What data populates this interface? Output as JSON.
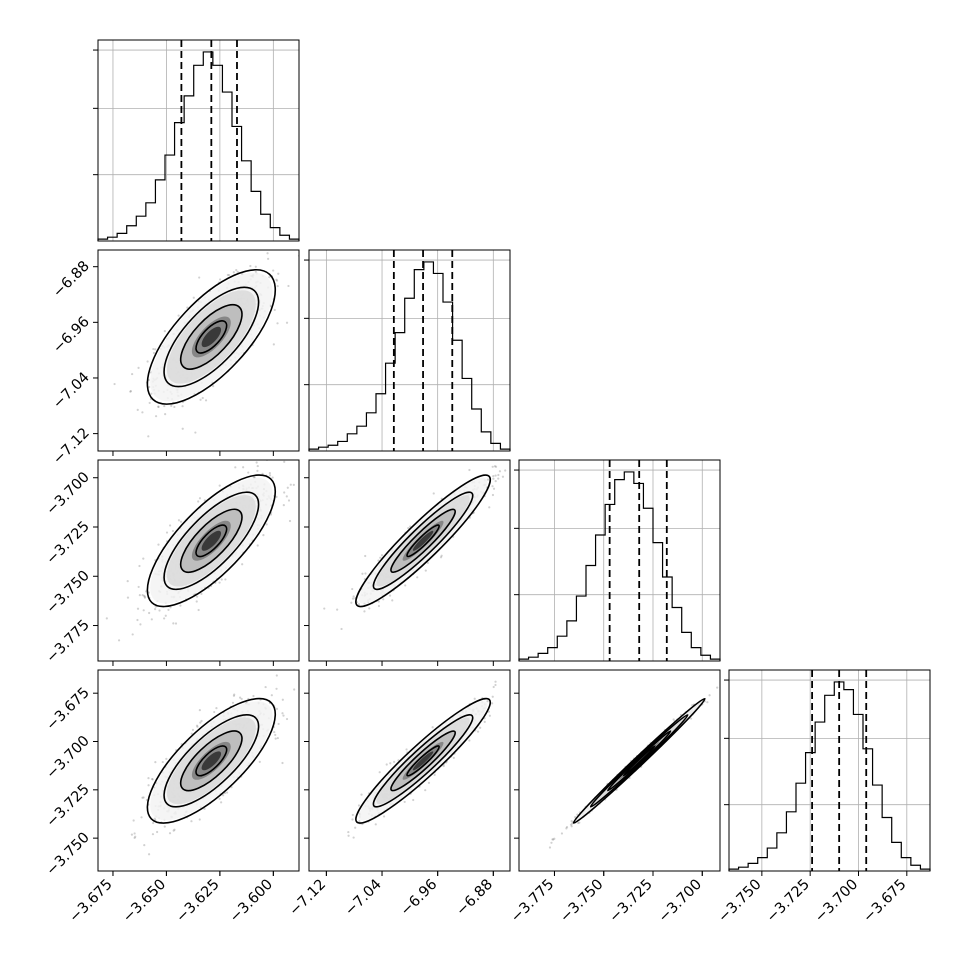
{
  "chart_data": {
    "type": "corner",
    "parameters": [
      {
        "id": "p0",
        "ticks": [
          "−3.675",
          "−3.650",
          "−3.625",
          "−3.600"
        ],
        "tick_values": [
          -3.675,
          -3.65,
          -3.625,
          -3.6
        ],
        "range": [
          -3.682,
          -3.588
        ]
      },
      {
        "id": "p1",
        "ticks": [
          "−7.12",
          "−7.04",
          "−6.96",
          "−6.88"
        ],
        "tick_values": [
          -7.12,
          -7.04,
          -6.96,
          -6.88
        ],
        "range": [
          -7.145,
          -6.856
        ]
      },
      {
        "id": "p2",
        "ticks": [
          "−3.775",
          "−3.750",
          "−3.725",
          "−3.700"
        ],
        "tick_values": [
          -3.775,
          -3.75,
          -3.725,
          -3.7
        ],
        "range": [
          -3.793,
          -3.691
        ]
      },
      {
        "id": "p3",
        "ticks": [
          "−3.750",
          "−3.725",
          "−3.700",
          "−3.675"
        ],
        "tick_values": [
          -3.75,
          -3.725,
          -3.7,
          -3.675
        ],
        "range": [
          -3.767,
          -3.663
        ]
      }
    ],
    "quantiles": [
      [
        -3.643,
        -3.629,
        -3.617
      ],
      [
        -7.023,
        -6.981,
        -6.939
      ],
      [
        -3.747,
        -3.732,
        -3.718
      ],
      [
        -3.724,
        -3.71,
        -3.696
      ]
    ],
    "histograms": [
      [
        0.01,
        0.02,
        0.04,
        0.08,
        0.13,
        0.2,
        0.32,
        0.45,
        0.62,
        0.76,
        0.92,
        0.99,
        0.92,
        0.78,
        0.6,
        0.42,
        0.26,
        0.14,
        0.07,
        0.03,
        0.01
      ],
      [
        0.01,
        0.02,
        0.03,
        0.05,
        0.09,
        0.13,
        0.2,
        0.3,
        0.46,
        0.62,
        0.8,
        0.95,
        0.99,
        0.93,
        0.78,
        0.58,
        0.38,
        0.22,
        0.1,
        0.04,
        0.01
      ],
      [
        0.01,
        0.02,
        0.04,
        0.07,
        0.13,
        0.21,
        0.34,
        0.5,
        0.66,
        0.82,
        0.95,
        0.99,
        0.93,
        0.8,
        0.62,
        0.44,
        0.28,
        0.15,
        0.07,
        0.03,
        0.01
      ],
      [
        0.01,
        0.02,
        0.04,
        0.07,
        0.12,
        0.2,
        0.31,
        0.46,
        0.62,
        0.78,
        0.92,
        0.99,
        0.95,
        0.82,
        0.64,
        0.45,
        0.28,
        0.15,
        0.07,
        0.03,
        0.01
      ]
    ],
    "pairs": [
      {
        "row": 1,
        "col": 0,
        "rho": 0.7
      },
      {
        "row": 2,
        "col": 0,
        "rho": 0.75
      },
      {
        "row": 2,
        "col": 1,
        "rho": 0.93
      },
      {
        "row": 3,
        "col": 0,
        "rho": 0.75
      },
      {
        "row": 3,
        "col": 1,
        "rho": 0.94
      },
      {
        "row": 3,
        "col": 2,
        "rho": 0.995
      }
    ],
    "grid": true,
    "colors": {
      "line": "#000000",
      "grid": "#b0b0b0",
      "scatter": "#7a7a7a"
    }
  }
}
